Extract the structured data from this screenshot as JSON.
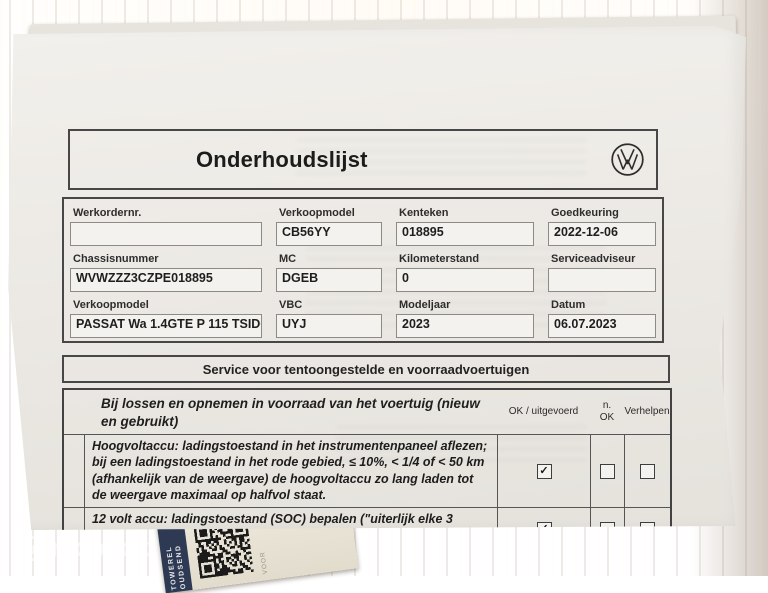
{
  "surface": {
    "watermark_brand": "mobilox",
    "qr_sticker": {
      "band_line1": "TOWEREL",
      "band_line2": "OUDSEND",
      "side_text": "VOOR"
    }
  },
  "document": {
    "title": "Onderhoudslijst",
    "logo_name": "volkswagen-logo",
    "fields": [
      {
        "label": "Werkordernr.",
        "value": ""
      },
      {
        "label": "Verkoopmodel",
        "value": "CB56YY"
      },
      {
        "label": "Kenteken",
        "value": "018895"
      },
      {
        "label": "Goedkeuring",
        "value": "2022-12-06"
      },
      {
        "label": "Chassisnummer",
        "value": "WVWZZZ3CZPE018895"
      },
      {
        "label": "MC",
        "value": "DGEB"
      },
      {
        "label": "Kilometerstand",
        "value": "0"
      },
      {
        "label": "Serviceadviseur",
        "value": ""
      },
      {
        "label": "Verkoopmodel",
        "value": "PASSAT Wa 1.4GTE P 115 TSID6F"
      },
      {
        "label": "VBC",
        "value": "UYJ"
      },
      {
        "label": "Modeljaar",
        "value": "2023"
      },
      {
        "label": "Datum",
        "value": "06.07.2023"
      }
    ],
    "section_header": "Service voor tentoongestelde en voorraadvoertuigen",
    "checklist": {
      "header": {
        "description": "Bij lossen en opnemen in voorraad van het voertuig (nieuw en gebruikt)",
        "ok": "OK / uitgevoerd",
        "nok": "n.\nOK",
        "fix": "Verhelpen"
      },
      "rows": [
        {
          "description": "Hoogvoltaccu: ladingstoestand in het instrumentenpaneel aflezen; bij een ladingstoestand in het rode gebied, ≤ 10%, < 1/4 of < 50 km (afhankelijk van de weergave) de hoogvoltaccu zo lang laden tot de weergave maximaal op halfvol staat.",
          "ok_mark": "✓",
          "nok_mark": "",
          "fix_mark": ""
        },
        {
          "description": "12 volt accu: ladingstoestand (SOC) bepalen (\"uiterlijk elke 3",
          "ok_mark": "✓",
          "nok_mark": "",
          "fix_mark": ""
        }
      ]
    }
  }
}
